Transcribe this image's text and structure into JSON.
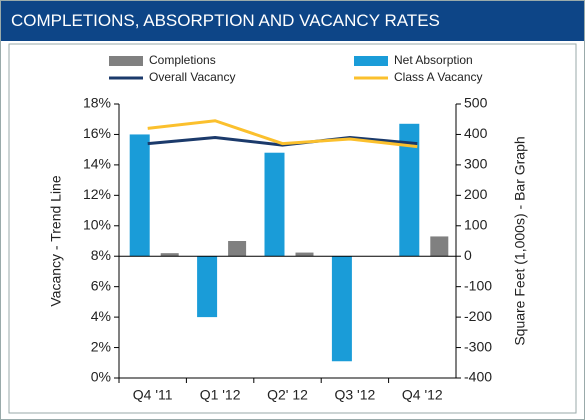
{
  "chart_data": {
    "type": "bar",
    "title": "COMPLETIONS, ABSORPTION AND VACANCY RATES",
    "ylabel": "Vacancy - Trend Line",
    "y2label": "Square Feet (1,000s) - Bar Graph",
    "categories": [
      "Q4 '11",
      "Q1 '12",
      "Q2' 12",
      "Q3 '12",
      "Q4 '12"
    ],
    "series": [
      {
        "name": "Completions",
        "type": "bar",
        "axis": "y2",
        "color": "#808080",
        "values": [
          10,
          50,
          12,
          0,
          65
        ]
      },
      {
        "name": "Net Absorption",
        "type": "bar",
        "axis": "y2",
        "color": "#1a9cd8",
        "values": [
          400,
          -200,
          340,
          -345,
          435
        ]
      },
      {
        "name": "Overall Vacancy",
        "type": "line",
        "color": "#1b3a6b",
        "values": [
          15.4,
          15.8,
          15.3,
          15.8,
          15.4
        ]
      },
      {
        "name": "Class A Vacancy",
        "type": "line",
        "color": "#fbc02d",
        "values": [
          16.4,
          16.9,
          15.4,
          15.7,
          15.2
        ]
      }
    ],
    "ylim": [
      0,
      18
    ],
    "yticks": [
      {
        "value": 0,
        "label": "0%"
      },
      {
        "value": 2,
        "label": "2%"
      },
      {
        "value": 4,
        "label": "4%"
      },
      {
        "value": 6,
        "label": "6%"
      },
      {
        "value": 8,
        "label": "8%"
      },
      {
        "value": 10,
        "label": "10%"
      },
      {
        "value": 12,
        "label": "12%"
      },
      {
        "value": 14,
        "label": "14%"
      },
      {
        "value": 16,
        "label": "16%"
      },
      {
        "value": 18,
        "label": "18%"
      }
    ],
    "y2lim": [
      -400,
      500
    ],
    "y2ticks": [
      -400,
      -300,
      -200,
      -100,
      0,
      100,
      200,
      300,
      400,
      500
    ],
    "grid": false,
    "legend": "top"
  }
}
